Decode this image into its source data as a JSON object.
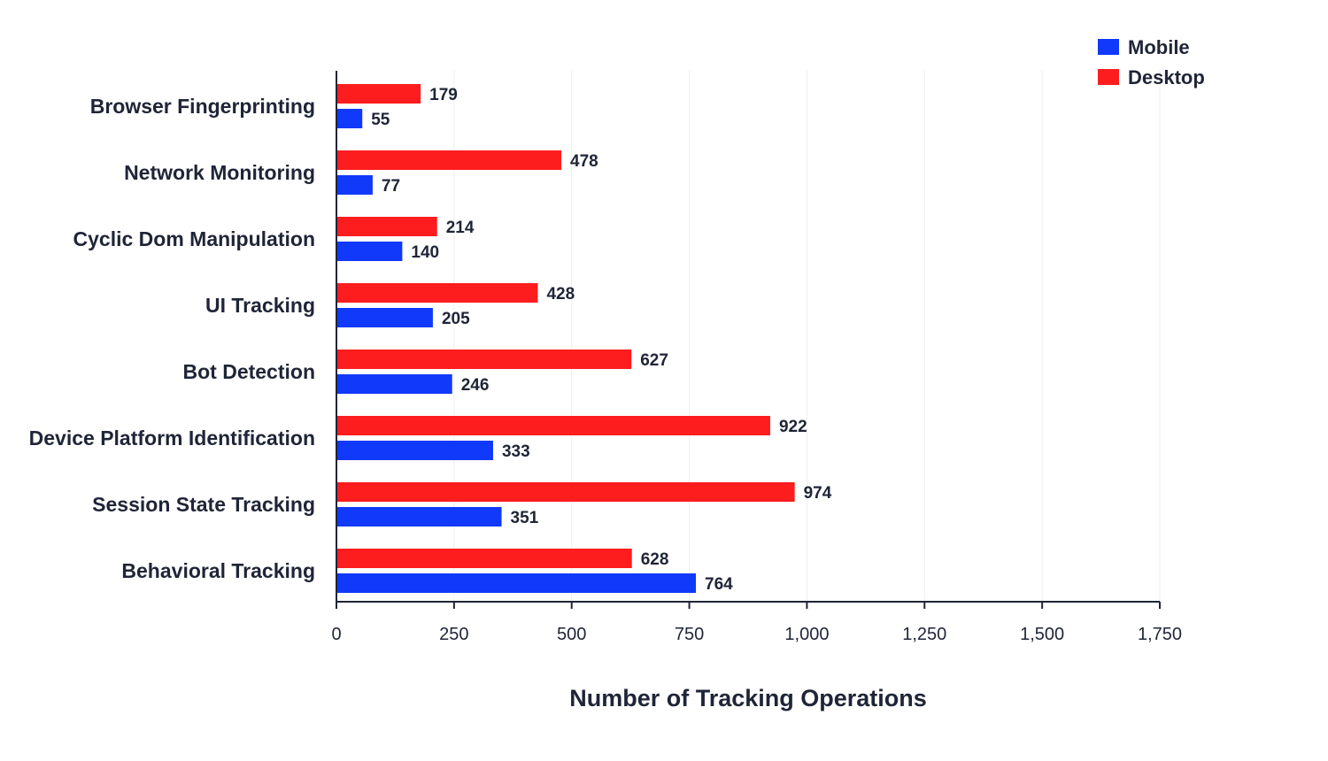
{
  "chart_data": {
    "type": "bar",
    "orientation": "horizontal",
    "title": "",
    "xlabel": "Number of Tracking Operations",
    "ylabel": "",
    "categories": [
      "Browser Fingerprinting",
      "Network Monitoring",
      "Cyclic Dom Manipulation",
      "UI Tracking",
      "Bot Detection",
      "Device Platform Identification",
      "Session State Tracking",
      "Behavioral Tracking"
    ],
    "series": [
      {
        "name": "Mobile",
        "color": "#1139fa",
        "values": [
          55,
          77,
          140,
          205,
          246,
          333,
          351,
          764
        ]
      },
      {
        "name": "Desktop",
        "color": "#fd1d1f",
        "values": [
          179,
          478,
          214,
          428,
          627,
          922,
          974,
          628
        ]
      }
    ],
    "xlim": [
      0,
      1750
    ],
    "xticks": [
      0,
      250,
      500,
      750,
      1000,
      1250,
      1500,
      1750
    ],
    "xtick_labels": [
      "0",
      "250",
      "500",
      "750",
      "1,000",
      "1,250",
      "1,500",
      "1,750"
    ],
    "grid": "vertical",
    "legend_position": "top-right",
    "legend": [
      "Mobile",
      "Desktop"
    ]
  }
}
